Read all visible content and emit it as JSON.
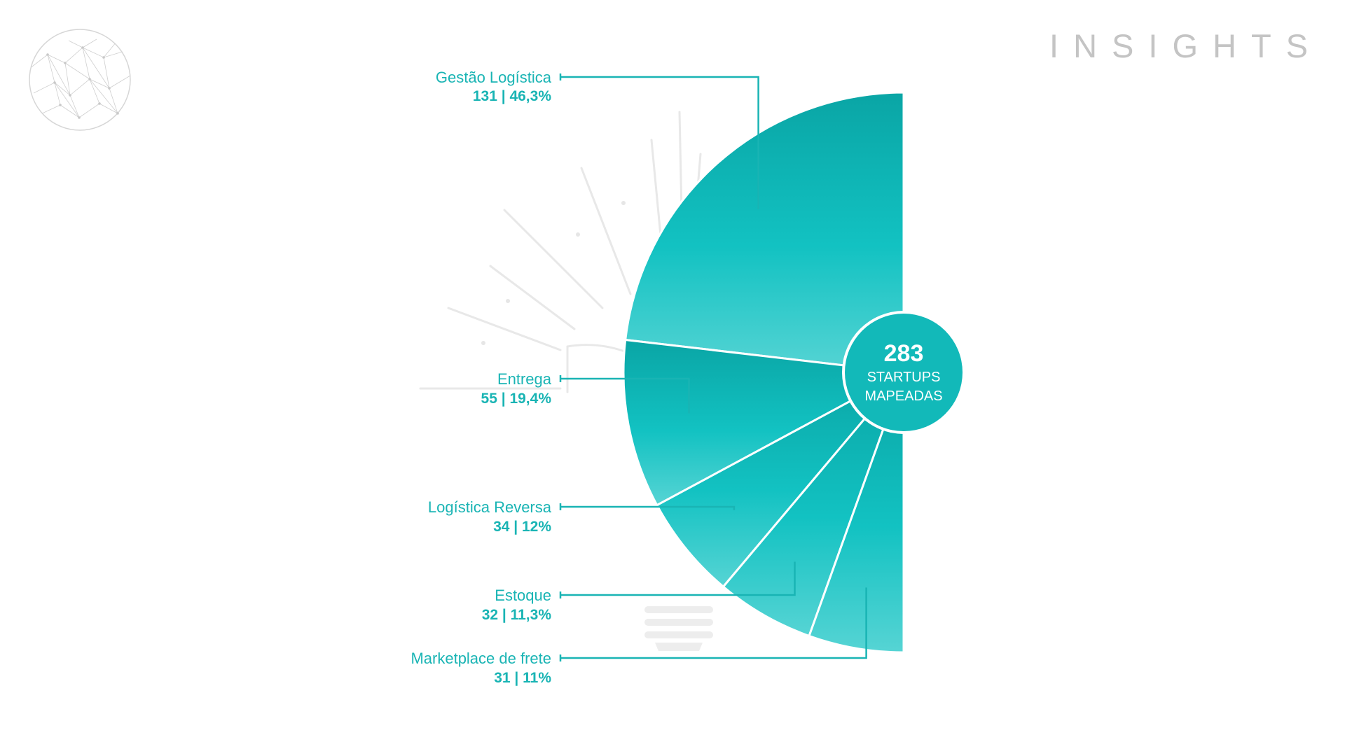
{
  "header": {
    "title": "INSIGHTS"
  },
  "logo": {
    "icon": "globe-network-icon"
  },
  "colors": {
    "accent": "#19b4b4",
    "slice_dark": "#0aa5a5",
    "slice_mid": "#12c2c2",
    "slice_light": "#56d4d4",
    "title": "#c4c4c4",
    "background_art": "#e6e6e6"
  },
  "center": {
    "number": "283",
    "line1": "STARTUPS",
    "line2": "MAPEADAS"
  },
  "chart_data": {
    "type": "pie",
    "title": "",
    "total": 283,
    "slices": [
      {
        "name": "Gestão Logística",
        "value": 131,
        "percent": 46.3,
        "value_label": "131 | 46,3%"
      },
      {
        "name": "Entrega",
        "value": 55,
        "percent": 19.4,
        "value_label": "55 | 19,4%"
      },
      {
        "name": "Logística Reversa",
        "value": 34,
        "percent": 12,
        "value_label": "34 | 12%"
      },
      {
        "name": "Estoque",
        "value": 32,
        "percent": 11.3,
        "value_label": "32 | 11,3%"
      },
      {
        "name": "Marketplace de frete",
        "value": 31,
        "percent": 11,
        "value_label": "31 | 11%"
      }
    ]
  }
}
